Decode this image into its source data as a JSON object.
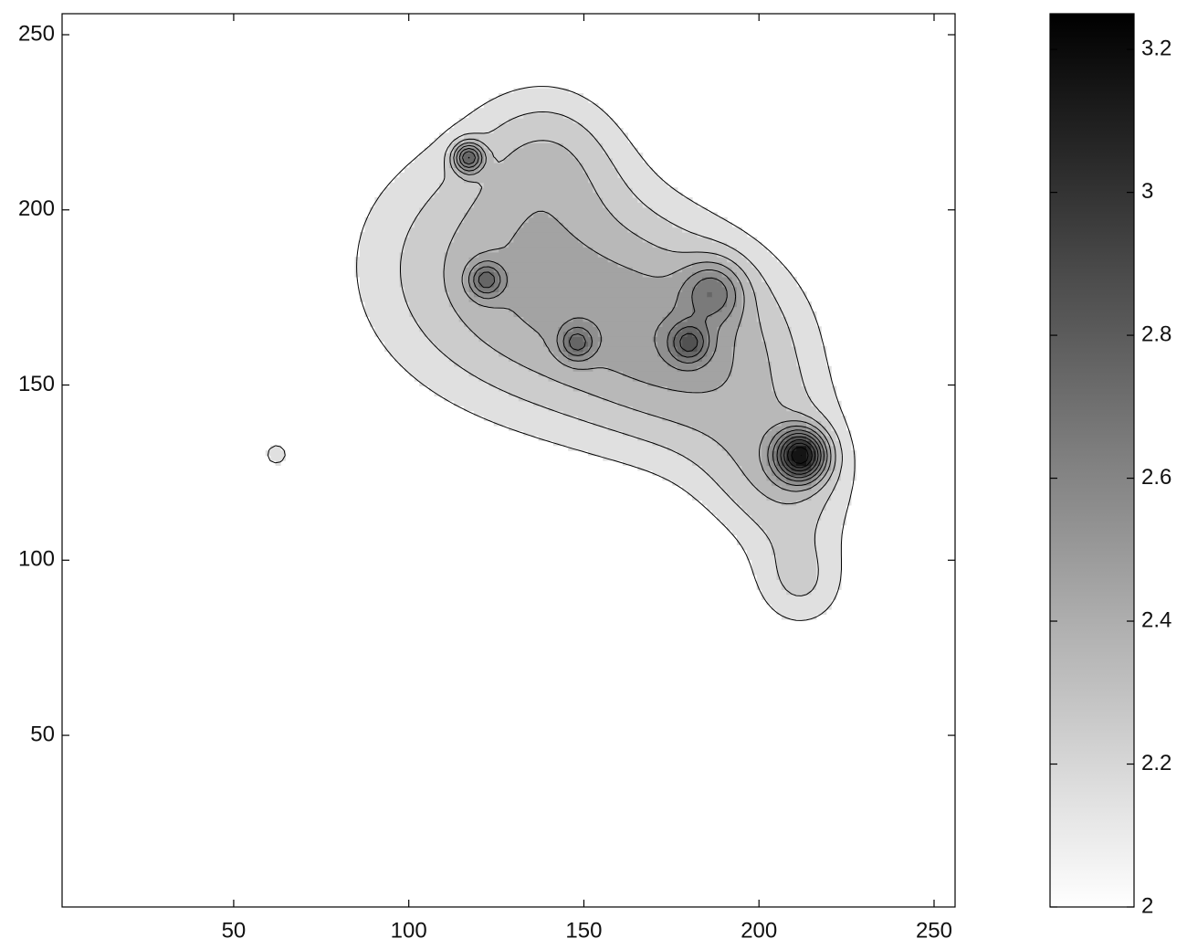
{
  "chart_data": {
    "type": "contour",
    "xlim": [
      1,
      256
    ],
    "ylim": [
      1,
      256
    ],
    "xticks": [
      50,
      100,
      150,
      200,
      250
    ],
    "yticks": [
      50,
      100,
      150,
      200,
      250
    ],
    "base": 1.9,
    "peaks": [
      {
        "x": 115,
        "y": 185,
        "value": 0.3,
        "spread": 30
      },
      {
        "x": 152,
        "y": 172,
        "value": 0.33,
        "spread": 28
      },
      {
        "x": 188,
        "y": 158,
        "value": 0.38,
        "spread": 24
      },
      {
        "x": 208,
        "y": 122,
        "value": 0.32,
        "spread": 16
      },
      {
        "x": 212,
        "y": 92,
        "value": 0.26,
        "spread": 11
      },
      {
        "x": 140,
        "y": 218,
        "value": 0.22,
        "spread": 16
      },
      {
        "x": 62,
        "y": 130,
        "value": 0.2,
        "spread": 7
      },
      {
        "x": 212,
        "y": 130,
        "value": 0.9,
        "spread": 5
      },
      {
        "x": 117,
        "y": 215,
        "value": 0.6,
        "spread": 3
      },
      {
        "x": 122,
        "y": 180,
        "value": 0.4,
        "spread": 3.5
      },
      {
        "x": 148,
        "y": 162,
        "value": 0.35,
        "spread": 3.5
      },
      {
        "x": 187,
        "y": 177,
        "value": 0.35,
        "spread": 6
      },
      {
        "x": 180,
        "y": 162,
        "value": 0.4,
        "spread": 4
      }
    ],
    "levels": [
      2.1,
      2.2,
      2.3,
      2.4,
      2.5,
      2.6,
      2.7,
      2.8,
      2.9,
      3,
      3.1,
      3.2
    ],
    "clim": [
      2,
      3.25
    ],
    "cticks": [
      2,
      2.2,
      2.4,
      2.6,
      2.8,
      3,
      3.2
    ],
    "colormap": [
      "#ffffff",
      "#000000"
    ]
  }
}
